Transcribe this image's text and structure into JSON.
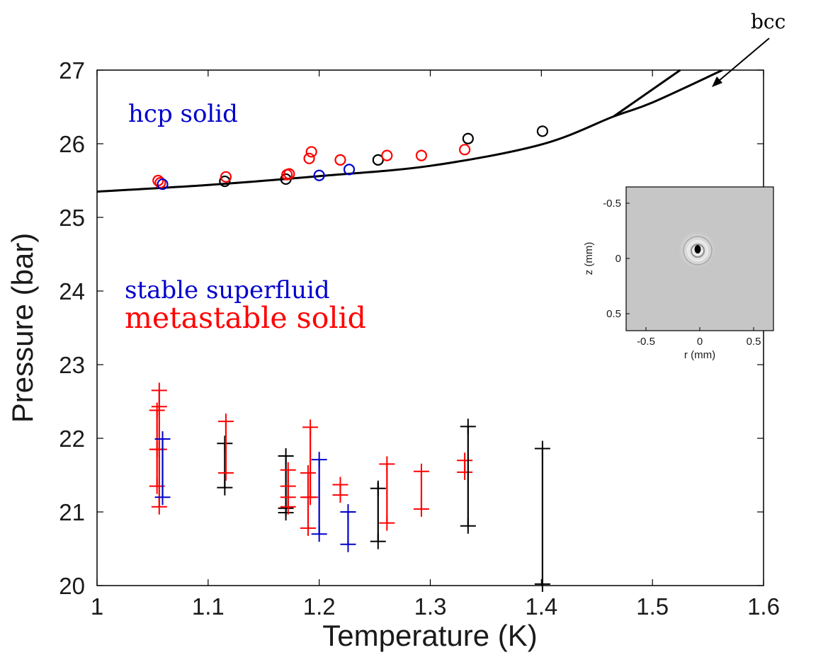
{
  "chart_data": {
    "type": "scatter",
    "xlabel": "Temperature (K)",
    "ylabel": "Pressure (bar)",
    "xlim": [
      1,
      1.6
    ],
    "ylim": [
      20,
      27
    ],
    "xticks": [
      "1",
      "1.1",
      "1.2",
      "1.3",
      "1.4",
      "1.5",
      "1.6"
    ],
    "yticks": [
      "20",
      "21",
      "22",
      "23",
      "24",
      "25",
      "26",
      "27"
    ],
    "grid": false,
    "colors": {
      "black": "#000000",
      "red": "#ff0000",
      "blue": "#0000cc"
    },
    "melting_curve": {
      "x": [
        1.0,
        1.1,
        1.2,
        1.3,
        1.4,
        1.465,
        1.5,
        1.563
      ],
      "y": [
        25.35,
        25.44,
        25.56,
        25.7,
        25.99,
        26.37,
        26.56,
        27.0
      ]
    },
    "bcc_line": {
      "x": [
        1.465,
        1.525
      ],
      "y": [
        26.37,
        27.0
      ]
    },
    "circles": [
      {
        "x": 1.055,
        "y": 25.5,
        "color": "red"
      },
      {
        "x": 1.057,
        "y": 25.47,
        "color": "red"
      },
      {
        "x": 1.059,
        "y": 25.45,
        "color": "blue"
      },
      {
        "x": 1.115,
        "y": 25.49,
        "color": "black"
      },
      {
        "x": 1.116,
        "y": 25.55,
        "color": "red"
      },
      {
        "x": 1.17,
        "y": 25.52,
        "color": "black"
      },
      {
        "x": 1.171,
        "y": 25.58,
        "color": "red"
      },
      {
        "x": 1.173,
        "y": 25.59,
        "color": "red"
      },
      {
        "x": 1.191,
        "y": 25.8,
        "color": "red"
      },
      {
        "x": 1.193,
        "y": 25.89,
        "color": "red"
      },
      {
        "x": 1.2,
        "y": 25.57,
        "color": "blue"
      },
      {
        "x": 1.219,
        "y": 25.78,
        "color": "red"
      },
      {
        "x": 1.227,
        "y": 25.65,
        "color": "blue"
      },
      {
        "x": 1.253,
        "y": 25.78,
        "color": "black"
      },
      {
        "x": 1.261,
        "y": 25.84,
        "color": "red"
      },
      {
        "x": 1.292,
        "y": 25.84,
        "color": "red"
      },
      {
        "x": 1.331,
        "y": 25.92,
        "color": "red"
      },
      {
        "x": 1.334,
        "y": 26.07,
        "color": "black"
      },
      {
        "x": 1.401,
        "y": 26.17,
        "color": "black"
      }
    ],
    "error_bars": [
      {
        "x": 1.054,
        "low": 21.35,
        "high": 22.38,
        "color": "red",
        "marks": [
          22.38,
          21.35,
          21.85
        ]
      },
      {
        "x": 1.056,
        "low": 21.07,
        "high": 22.65,
        "color": "red",
        "marks": [
          22.65,
          21.07,
          22.43,
          21.85
        ]
      },
      {
        "x": 1.059,
        "low": 21.2,
        "high": 21.99,
        "color": "blue",
        "marks": [
          21.99,
          21.2
        ]
      },
      {
        "x": 1.115,
        "low": 21.33,
        "high": 21.93,
        "color": "black",
        "marks": [
          21.93,
          21.33
        ]
      },
      {
        "x": 1.116,
        "low": 21.53,
        "high": 22.23,
        "color": "red",
        "marks": [
          22.23,
          21.53
        ]
      },
      {
        "x": 1.17,
        "low": 20.99,
        "high": 21.76,
        "color": "black",
        "marks": [
          21.76,
          20.99,
          21.05
        ]
      },
      {
        "x": 1.172,
        "low": 21.07,
        "high": 21.57,
        "color": "red",
        "marks": [
          21.57,
          21.07,
          21.2,
          21.35
        ]
      },
      {
        "x": 1.19,
        "low": 20.78,
        "high": 21.53,
        "color": "red",
        "marks": [
          21.53,
          20.78,
          21.2
        ]
      },
      {
        "x": 1.192,
        "low": 21.2,
        "high": 22.15,
        "color": "red",
        "marks": [
          22.15,
          21.2
        ]
      },
      {
        "x": 1.2,
        "low": 20.7,
        "high": 21.71,
        "color": "blue",
        "marks": [
          21.71,
          20.7
        ]
      },
      {
        "x": 1.219,
        "low": 21.23,
        "high": 21.37,
        "color": "red",
        "marks": [
          21.37,
          21.23
        ]
      },
      {
        "x": 1.226,
        "low": 20.56,
        "high": 21.0,
        "color": "blue",
        "marks": [
          21.0,
          20.56
        ]
      },
      {
        "x": 1.253,
        "low": 20.6,
        "high": 21.4,
        "color": "black",
        "marks": [
          21.32,
          20.6
        ]
      },
      {
        "x": 1.261,
        "low": 20.85,
        "high": 21.65,
        "color": "red",
        "marks": [
          21.65,
          20.85
        ]
      },
      {
        "x": 1.292,
        "low": 21.04,
        "high": 21.55,
        "color": "red",
        "marks": [
          21.55,
          21.04
        ]
      },
      {
        "x": 1.331,
        "low": 21.54,
        "high": 21.7,
        "color": "red",
        "marks": [
          21.7,
          21.54
        ]
      },
      {
        "x": 1.334,
        "low": 20.81,
        "high": 22.16,
        "color": "black",
        "marks": [
          22.16,
          20.81
        ]
      },
      {
        "x": 1.401,
        "low": 20.02,
        "high": 21.86,
        "color": "black",
        "marks": [
          21.86,
          20.02
        ]
      }
    ],
    "annotations": {
      "hcp": "hcp solid",
      "stable": "stable superfluid",
      "metastable": "metastable solid",
      "bcc": "bcc"
    },
    "inset": {
      "xlabel": "r (mm)",
      "ylabel": "z (mm)",
      "xticks": [
        "-0.5",
        "0",
        "0.5"
      ],
      "yticks": [
        "-0.5",
        "0",
        "0.5"
      ]
    }
  }
}
